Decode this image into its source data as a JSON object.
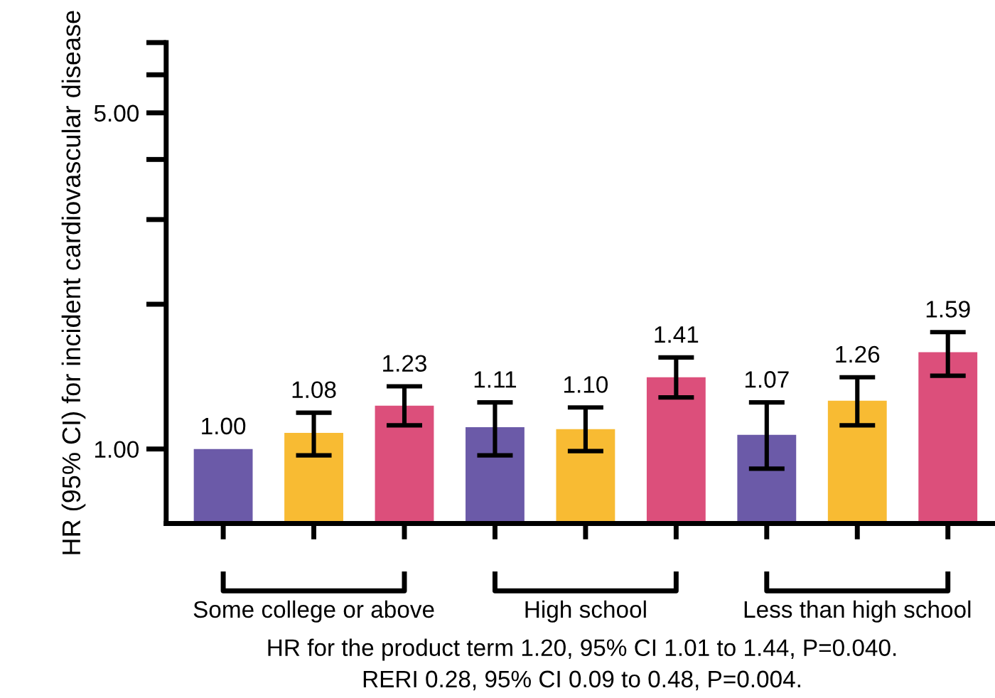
{
  "chart_data": {
    "type": "bar",
    "ylabel": "HR (95% CI) for incident cardiovascular disease",
    "categories": [
      null,
      null,
      null,
      null,
      null,
      null,
      null,
      null,
      null
    ],
    "values": [
      1.0,
      1.08,
      1.23,
      1.11,
      1.1,
      1.41,
      1.07,
      1.26,
      1.59
    ],
    "colors": [
      "#6b5aa8",
      "#f8bb33",
      "#dc4f7b",
      "#6b5aa8",
      "#f8bb33",
      "#dc4f7b",
      "#6b5aa8",
      "#f8bb33",
      "#dc4f7b"
    ],
    "errors": [
      null,
      [
        0.97,
        1.19
      ],
      [
        1.12,
        1.35
      ],
      [
        0.97,
        1.25
      ],
      [
        0.99,
        1.22
      ],
      [
        1.28,
        1.55
      ],
      [
        0.91,
        1.25
      ],
      [
        1.12,
        1.41
      ],
      [
        1.42,
        1.75
      ]
    ],
    "value_labels": [
      "1.00",
      "1.08",
      "1.23",
      "1.11",
      "1.10",
      "1.41",
      "1.07",
      "1.26",
      "1.59"
    ],
    "log": true,
    "ylim": [
      0.7,
      7
    ],
    "yticks": [
      {
        "value": 1,
        "label": "1.00"
      },
      {
        "value": 2,
        "label": null
      },
      {
        "value": 3,
        "label": null
      },
      {
        "value": 4,
        "label": null
      },
      {
        "value": 5,
        "label": "5.00"
      },
      {
        "value": 6,
        "label": null
      },
      {
        "value": 7,
        "label": null
      }
    ],
    "grid": false,
    "annotations": [
      "Some college or above",
      "High school",
      "Less than high school",
      "HR for the product term 1.20, 95% CI 1.01 to 1.44, P=0.040.",
      "RERI 0.28, 95% CI 0.09 to 0.48, P=0.004."
    ]
  }
}
